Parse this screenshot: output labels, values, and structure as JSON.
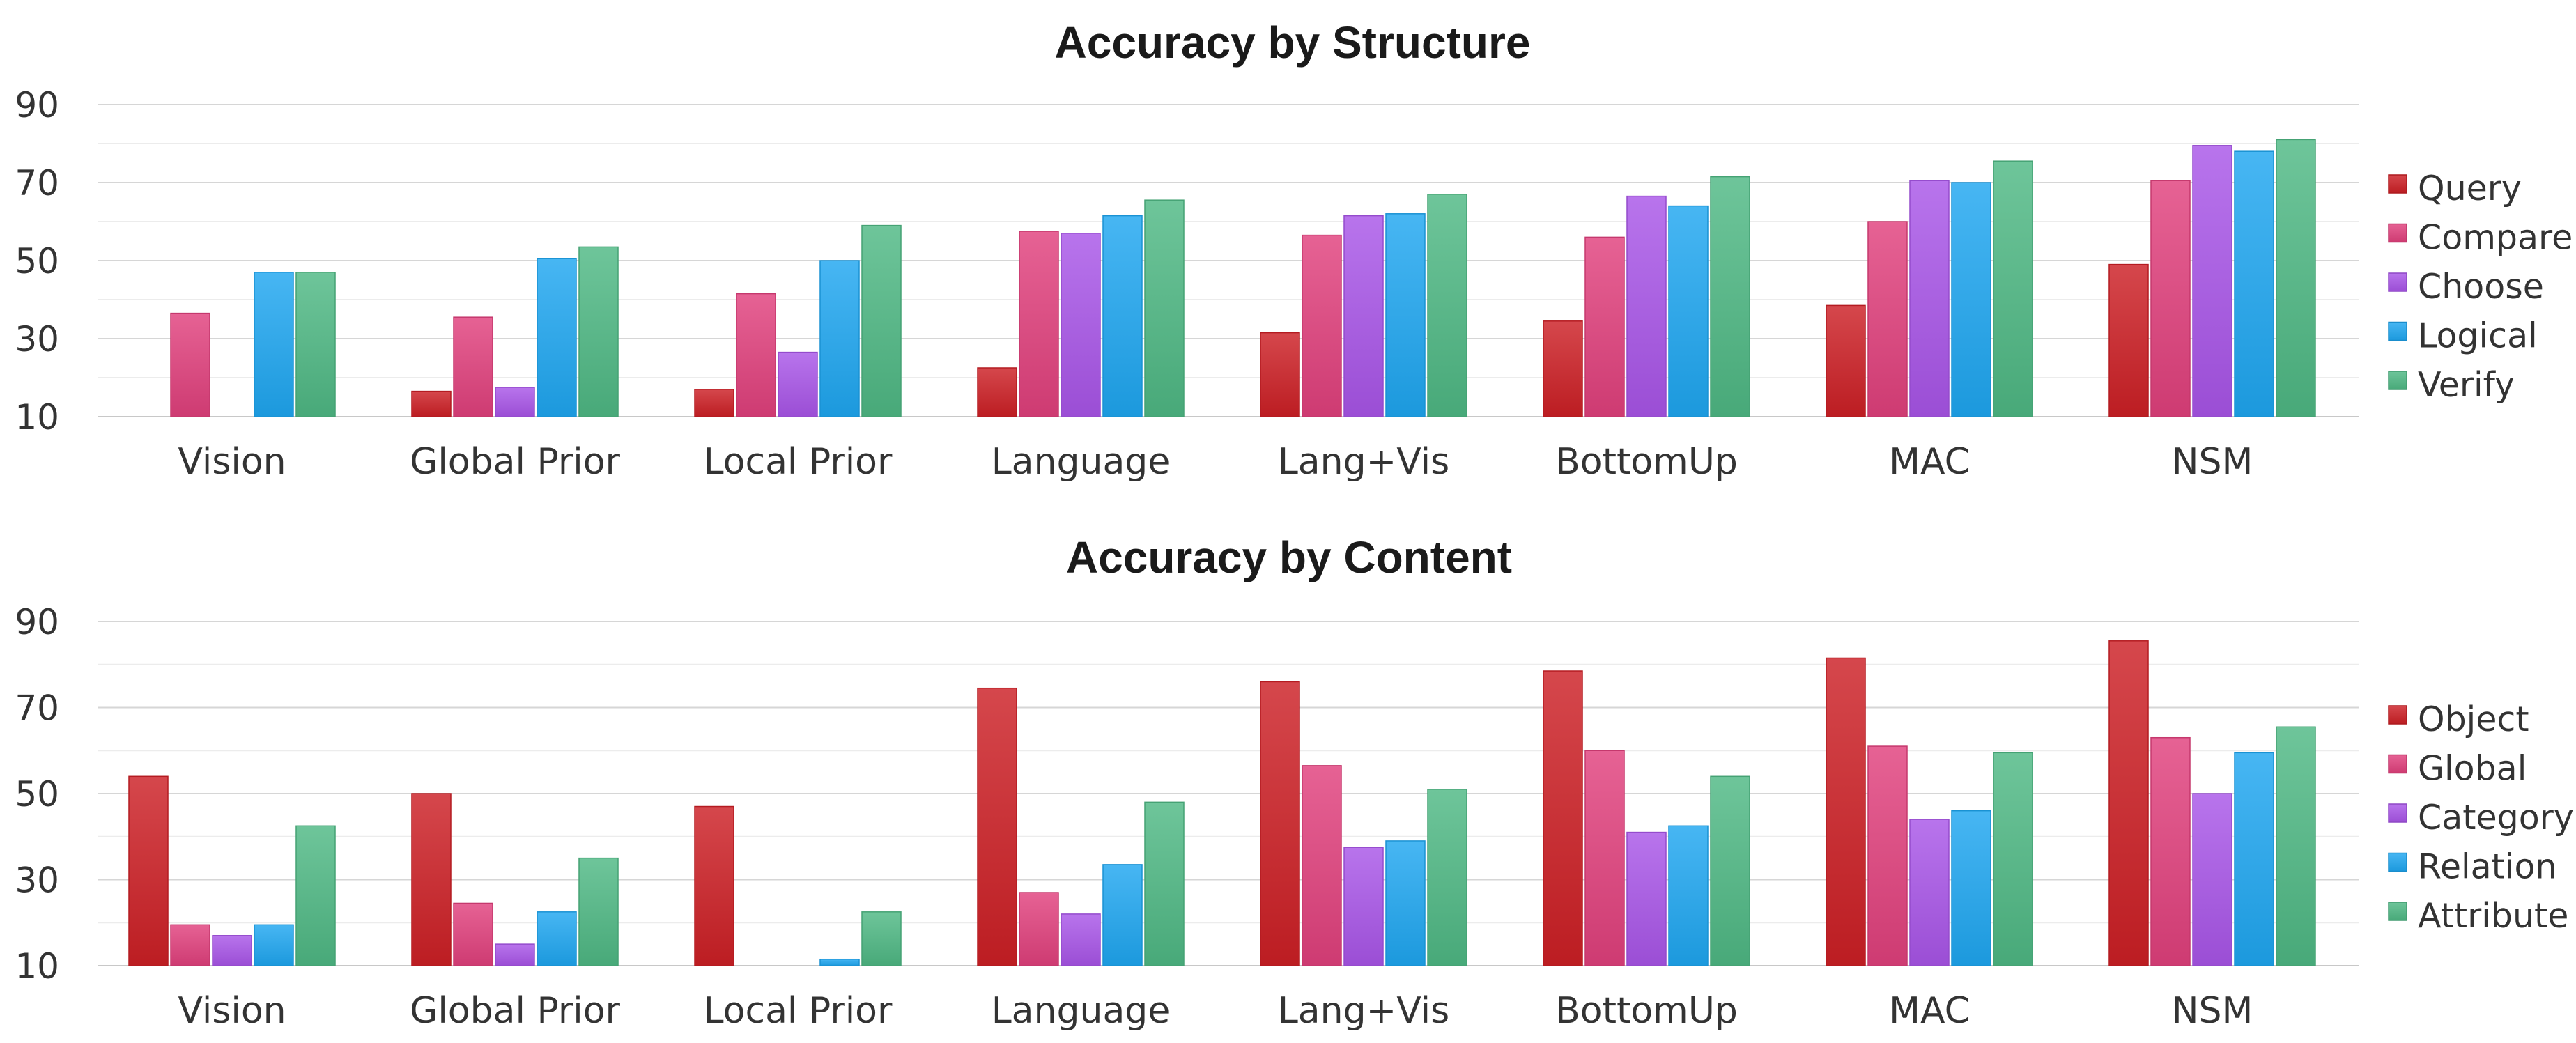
{
  "chart_data": [
    {
      "type": "bar",
      "title": "Accuracy by Structure",
      "categories": [
        "Vision",
        "Global Prior",
        "Local Prior",
        "Language",
        "Lang+Vis",
        "BottomUp",
        "MAC",
        "NSM"
      ],
      "ylim": [
        10,
        95
      ],
      "yticks": [
        10,
        30,
        50,
        70,
        90
      ],
      "grid": true,
      "legend_position": "right",
      "series": [
        {
          "name": "Query",
          "color": "#cc1f25",
          "values": [
            null,
            16.5,
            17,
            22.5,
            31.5,
            34.5,
            38.5,
            49
          ]
        },
        {
          "name": "Compare",
          "color": "#e0407c",
          "values": [
            36.5,
            35.5,
            41.5,
            57.5,
            56.5,
            56,
            60,
            70.5
          ]
        },
        {
          "name": "Choose",
          "color": "#a855e8",
          "values": [
            null,
            17.5,
            26.5,
            57,
            61.5,
            66.5,
            70.5,
            79.5
          ]
        },
        {
          "name": "Logical",
          "color": "#1ea6f0",
          "values": [
            47,
            50.5,
            50,
            61.5,
            62,
            64,
            70,
            78
          ]
        },
        {
          "name": "Verify",
          "color": "#4eb884",
          "values": [
            47,
            53.5,
            59,
            65.5,
            67,
            71.5,
            75.5,
            81
          ]
        }
      ]
    },
    {
      "type": "bar",
      "title": "Accuracy by Content",
      "categories": [
        "Vision",
        "Global Prior",
        "Local Prior",
        "Language",
        "Lang+Vis",
        "BottomUp",
        "MAC",
        "NSM"
      ],
      "ylim": [
        10,
        95
      ],
      "yticks": [
        10,
        30,
        50,
        70,
        90
      ],
      "grid": true,
      "legend_position": "right",
      "series": [
        {
          "name": "Object",
          "color": "#cc1f25",
          "values": [
            54,
            50,
            47,
            74.5,
            76,
            78.5,
            81.5,
            85.5
          ]
        },
        {
          "name": "Global",
          "color": "#e0407c",
          "values": [
            19.5,
            24.5,
            null,
            27,
            56.5,
            60,
            61,
            63
          ]
        },
        {
          "name": "Category",
          "color": "#a855e8",
          "values": [
            17,
            15,
            null,
            22,
            37.5,
            41,
            44,
            50
          ]
        },
        {
          "name": "Relation",
          "color": "#1ea6f0",
          "values": [
            19.5,
            22.5,
            11.5,
            33.5,
            39,
            42.5,
            46,
            59.5
          ]
        },
        {
          "name": "Attribute",
          "color": "#4eb884",
          "values": [
            42.5,
            35,
            22.5,
            48,
            51,
            54,
            59.5,
            65.5
          ]
        }
      ]
    }
  ]
}
